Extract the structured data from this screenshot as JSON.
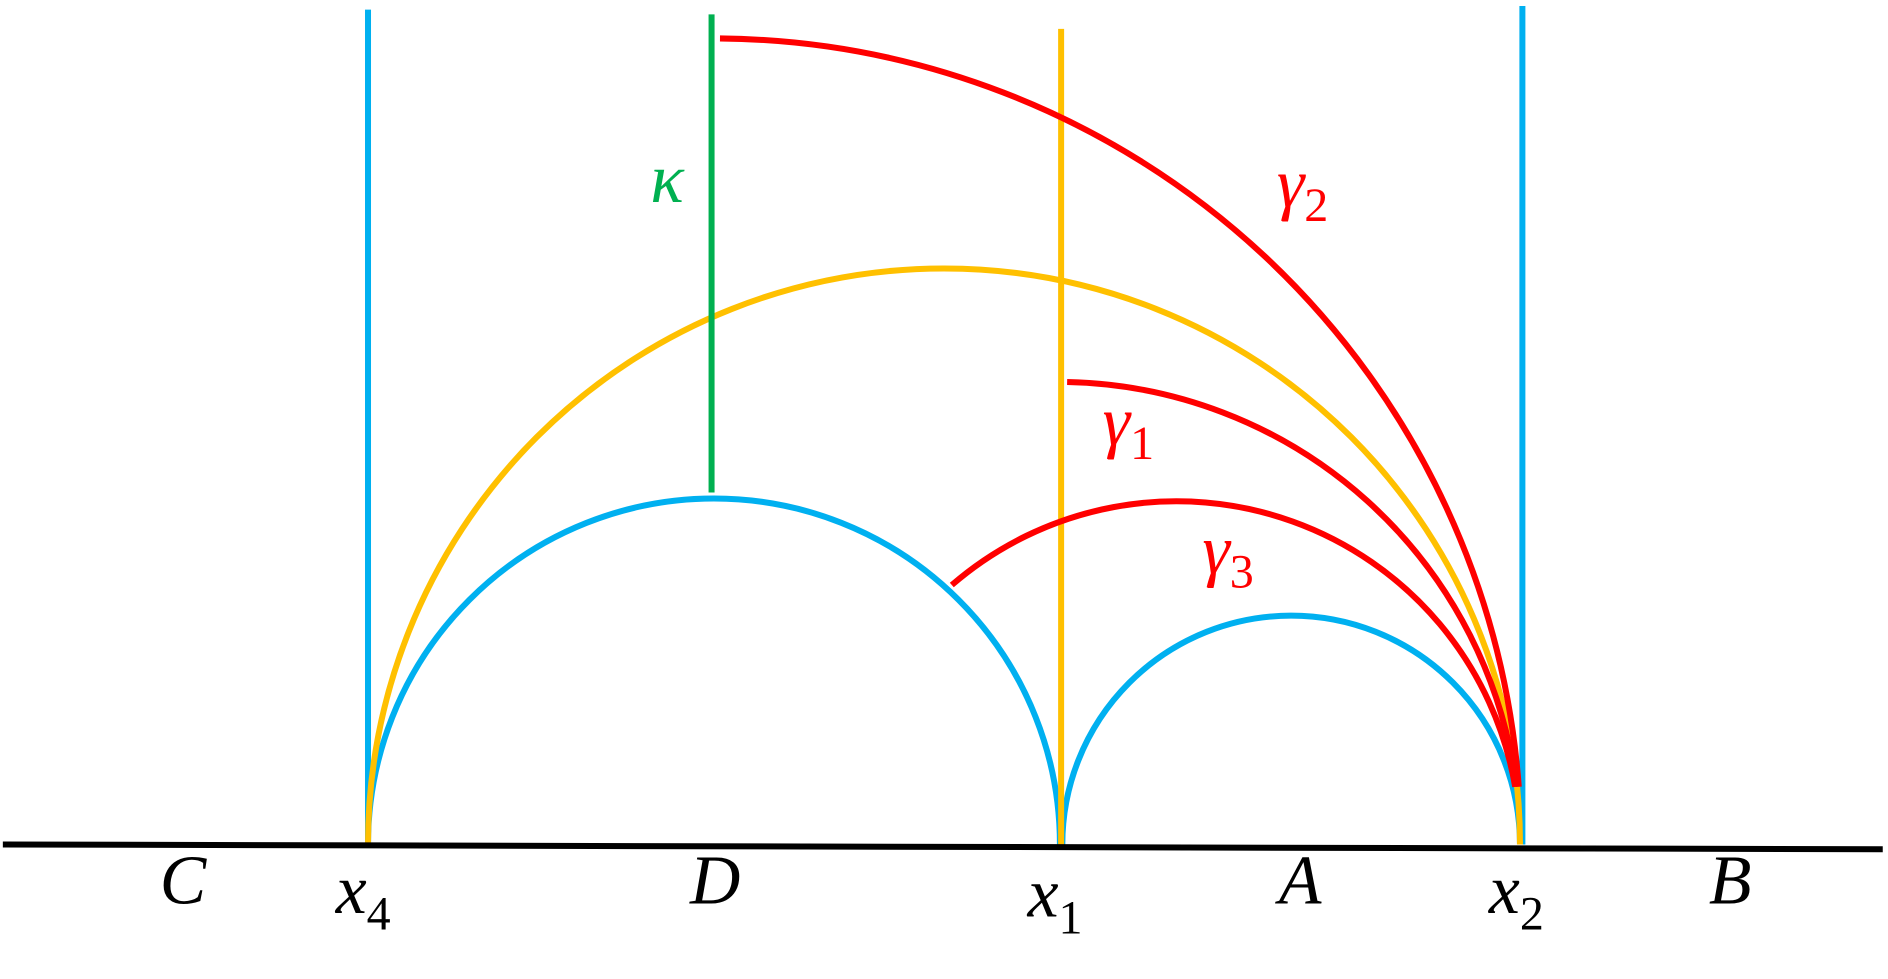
{
  "points": [
    {
      "label": "C"
    },
    {
      "label": "x",
      "subscript": "4"
    },
    {
      "label": "D"
    },
    {
      "label": "x",
      "subscript": "1"
    },
    {
      "label": "A"
    },
    {
      "label": "x",
      "subscript": "2"
    },
    {
      "label": "B"
    }
  ],
  "curves": [
    {
      "label": "κ"
    },
    {
      "label": "γ",
      "subscript": "2"
    },
    {
      "label": "γ",
      "subscript": "1"
    },
    {
      "label": "γ",
      "subscript": "3"
    }
  ]
}
